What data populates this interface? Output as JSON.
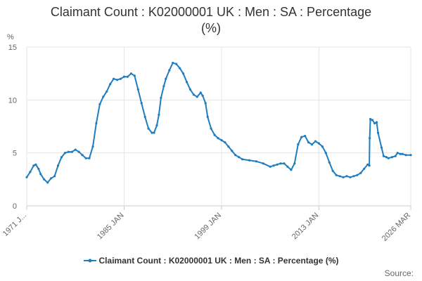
{
  "title_line1": "Claimant Count : K02000001 UK : Men : SA : Percentage",
  "title_line2": "(%)",
  "legend_label": "Claimant Count : K02000001 UK : Men : SA : Percentage (%)",
  "source_label": "Source:",
  "colors": {
    "series": "#1f7dbf",
    "grid": "#e6e6e6",
    "axis": "#cccccc",
    "text": "#666666"
  },
  "chart_data": {
    "type": "line",
    "ylabel": "%",
    "xlabel": "",
    "ylim": [
      0,
      15
    ],
    "yticks": [
      0,
      5,
      10,
      15
    ],
    "xlim": [
      1971.0,
      2026.2
    ],
    "xticks": [
      {
        "x": 1971.0,
        "label": "1971 J..."
      },
      {
        "x": 1985.0,
        "label": "1985 JAN"
      },
      {
        "x": 1999.0,
        "label": "1999 JAN"
      },
      {
        "x": 2013.0,
        "label": "2013 JAN"
      },
      {
        "x": 2026.2,
        "label": "2026 MAR"
      }
    ],
    "grid": true,
    "legend_position": "bottom",
    "series": [
      {
        "name": "Claimant Count : K02000001 UK : Men : SA : Percentage (%)",
        "points": [
          [
            1971.0,
            2.7
          ],
          [
            1971.5,
            3.2
          ],
          [
            1972.0,
            3.8
          ],
          [
            1972.3,
            3.9
          ],
          [
            1972.7,
            3.5
          ],
          [
            1973.0,
            3.0
          ],
          [
            1973.5,
            2.5
          ],
          [
            1974.0,
            2.2
          ],
          [
            1974.5,
            2.6
          ],
          [
            1975.0,
            2.8
          ],
          [
            1975.5,
            3.8
          ],
          [
            1976.0,
            4.6
          ],
          [
            1976.5,
            5.0
          ],
          [
            1977.0,
            5.1
          ],
          [
            1977.5,
            5.1
          ],
          [
            1978.0,
            5.3
          ],
          [
            1978.5,
            5.1
          ],
          [
            1979.0,
            4.8
          ],
          [
            1979.5,
            4.5
          ],
          [
            1980.0,
            4.5
          ],
          [
            1980.5,
            5.6
          ],
          [
            1981.0,
            7.8
          ],
          [
            1981.5,
            9.6
          ],
          [
            1982.0,
            10.3
          ],
          [
            1982.5,
            10.8
          ],
          [
            1983.0,
            11.5
          ],
          [
            1983.5,
            12.0
          ],
          [
            1984.0,
            11.9
          ],
          [
            1984.5,
            12.0
          ],
          [
            1985.0,
            12.2
          ],
          [
            1985.5,
            12.2
          ],
          [
            1986.0,
            12.5
          ],
          [
            1986.5,
            12.3
          ],
          [
            1987.0,
            11.0
          ],
          [
            1987.5,
            9.7
          ],
          [
            1988.0,
            8.4
          ],
          [
            1988.5,
            7.3
          ],
          [
            1989.0,
            6.9
          ],
          [
            1989.3,
            6.9
          ],
          [
            1989.7,
            7.6
          ],
          [
            1990.0,
            8.6
          ],
          [
            1990.3,
            10.2
          ],
          [
            1990.7,
            11.3
          ],
          [
            1991.0,
            12.0
          ],
          [
            1991.5,
            12.8
          ],
          [
            1992.0,
            13.5
          ],
          [
            1992.5,
            13.4
          ],
          [
            1993.0,
            13.0
          ],
          [
            1993.5,
            12.5
          ],
          [
            1994.0,
            11.7
          ],
          [
            1994.5,
            11.0
          ],
          [
            1995.0,
            10.5
          ],
          [
            1995.5,
            10.3
          ],
          [
            1996.0,
            10.7
          ],
          [
            1996.3,
            10.4
          ],
          [
            1996.7,
            9.7
          ],
          [
            1997.0,
            8.4
          ],
          [
            1997.5,
            7.3
          ],
          [
            1998.0,
            6.7
          ],
          [
            1998.5,
            6.4
          ],
          [
            1999.0,
            6.2
          ],
          [
            1999.5,
            6.0
          ],
          [
            2000.0,
            5.6
          ],
          [
            2000.5,
            5.2
          ],
          [
            2001.0,
            4.8
          ],
          [
            2001.5,
            4.6
          ],
          [
            2002.0,
            4.4
          ],
          [
            2003.0,
            4.3
          ],
          [
            2004.0,
            4.2
          ],
          [
            2005.0,
            4.0
          ],
          [
            2006.0,
            3.7
          ],
          [
            2006.5,
            3.8
          ],
          [
            2007.0,
            3.9
          ],
          [
            2007.5,
            4.0
          ],
          [
            2008.0,
            4.0
          ],
          [
            2008.5,
            3.7
          ],
          [
            2009.0,
            3.4
          ],
          [
            2009.5,
            4.0
          ],
          [
            2010.0,
            5.8
          ],
          [
            2010.5,
            6.5
          ],
          [
            2011.0,
            6.6
          ],
          [
            2011.5,
            6.0
          ],
          [
            2012.0,
            5.8
          ],
          [
            2012.5,
            6.1
          ],
          [
            2013.0,
            5.9
          ],
          [
            2013.5,
            5.6
          ],
          [
            2014.0,
            5.0
          ],
          [
            2014.5,
            4.1
          ],
          [
            2015.0,
            3.3
          ],
          [
            2015.5,
            2.9
          ],
          [
            2016.0,
            2.8
          ],
          [
            2016.5,
            2.7
          ],
          [
            2017.0,
            2.8
          ],
          [
            2017.5,
            2.7
          ],
          [
            2018.0,
            2.8
          ],
          [
            2018.5,
            2.9
          ],
          [
            2019.0,
            3.1
          ],
          [
            2019.5,
            3.5
          ],
          [
            2020.0,
            3.9
          ],
          [
            2020.25,
            3.8
          ],
          [
            2020.3,
            6.4
          ],
          [
            2020.4,
            8.2
          ],
          [
            2020.7,
            8.1
          ],
          [
            2021.0,
            7.8
          ],
          [
            2021.3,
            7.9
          ],
          [
            2021.5,
            6.9
          ],
          [
            2022.0,
            5.5
          ],
          [
            2022.3,
            4.7
          ],
          [
            2022.7,
            4.6
          ],
          [
            2023.0,
            4.5
          ],
          [
            2023.5,
            4.6
          ],
          [
            2024.0,
            4.7
          ],
          [
            2024.3,
            5.0
          ],
          [
            2024.7,
            4.9
          ],
          [
            2025.0,
            4.9
          ],
          [
            2025.5,
            4.8
          ],
          [
            2026.2,
            4.8
          ]
        ]
      }
    ]
  }
}
